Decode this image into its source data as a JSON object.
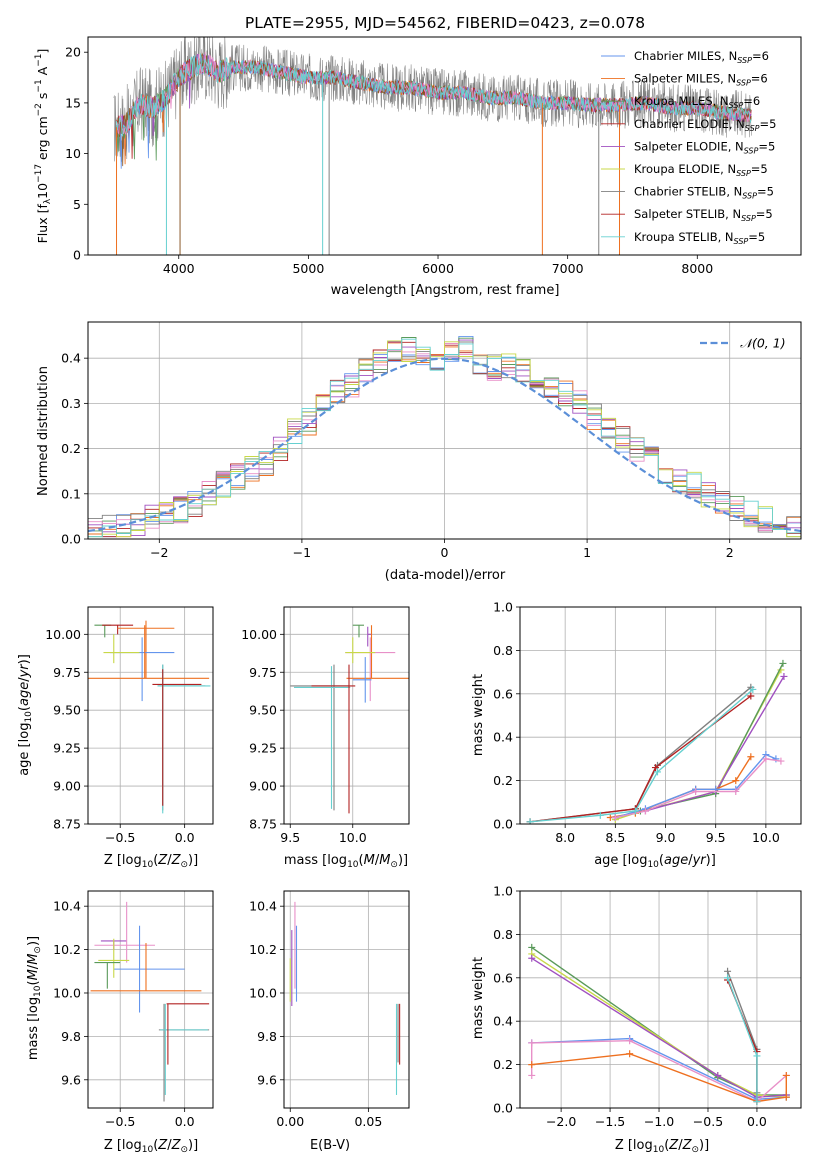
{
  "colors": [
    "#6495ed",
    "#ee7020",
    "#5a9a5a",
    "#b22222",
    "#a050c0",
    "#8b5a2b",
    "#e890c8",
    "#808080",
    "#c8d848",
    "#66d0d0"
  ],
  "chart_data": [
    {
      "id": "spectrum",
      "type": "line",
      "title": "PLATE=2955, MJD=54562, FIBERID=0423, z=0.078",
      "xlabel": "wavelength [Angstrom, rest frame]",
      "ylabel": "Flux [f$_\\lambda$10$^{-17}$ erg cm$^{-2}$ s$^{-1}$ A$^{-1}$]",
      "ylabel_parts": [
        "Flux [f",
        "λ",
        "10",
        "−17",
        " erg cm",
        "−2",
        " s",
        "−1",
        " A",
        "−1",
        "]"
      ],
      "xlim": [
        3300,
        8800
      ],
      "ylim": [
        0,
        21.5
      ],
      "xticks": [
        "4000",
        "5000",
        "6000",
        "7000",
        "8000"
      ],
      "xtick_values": [
        4000,
        5000,
        6000,
        7000,
        8000
      ],
      "yticks": [
        "0",
        "5",
        "10",
        "15",
        "20"
      ],
      "ytick_values": [
        0,
        5,
        10,
        15,
        20
      ],
      "legend": {
        "placement": "upper-right",
        "entries": [
          {
            "name": "Chabrier MILES, N",
            "sub": "SSP",
            "val": "=6"
          },
          {
            "name": "Salpeter MILES, N",
            "sub": "SSP",
            "val": "=6"
          },
          {
            "name": "Kroupa MILES, N",
            "sub": "SSP",
            "val": "=6"
          },
          {
            "name": "Chabrier ELODIE, N",
            "sub": "SSP",
            "val": "=5"
          },
          {
            "name": "Salpeter ELODIE, N",
            "sub": "SSP",
            "val": "=5"
          },
          {
            "name": "Kroupa ELODIE, N",
            "sub": "SSP",
            "val": "=5"
          },
          {
            "name": "Chabrier STELIB, N",
            "sub": "SSP",
            "val": "=5"
          },
          {
            "name": "Salpeter STELIB, N",
            "sub": "SSP",
            "val": "=5"
          },
          {
            "name": "Kroupa STELIB, N",
            "sub": "SSP",
            "val": "=5"
          }
        ]
      },
      "data_points": {
        "wavelength": [
          3500,
          3600,
          3700,
          3800,
          3900,
          4000,
          4100,
          4200,
          4300,
          4400,
          4600,
          4800,
          5000,
          5200,
          5400,
          5600,
          5800,
          6000,
          6200,
          6400,
          6600,
          6800,
          7000,
          7200,
          7400,
          7600,
          7800,
          8000,
          8200,
          8400
        ],
        "flux": [
          12.5,
          13.0,
          15.0,
          14.5,
          15.5,
          17.5,
          18.5,
          19.0,
          18.0,
          18.5,
          18.5,
          18.0,
          17.5,
          17.5,
          17.0,
          16.5,
          16.5,
          16.0,
          16.0,
          15.5,
          15.5,
          15.0,
          15.0,
          14.8,
          14.8,
          15.0,
          14.5,
          14.5,
          14.0,
          13.8
        ]
      }
    },
    {
      "id": "residuals",
      "type": "histogram",
      "xlabel": "(data-model)/error",
      "ylabel": "Normed distribution",
      "xlim": [
        -2.5,
        2.5
      ],
      "ylim": [
        0,
        0.48
      ],
      "xticks": [
        "−2",
        "−1",
        "0",
        "1",
        "2"
      ],
      "xtick_values": [
        -2,
        -1,
        0,
        1,
        2
      ],
      "yticks": [
        "0.0",
        "0.1",
        "0.2",
        "0.3",
        "0.4"
      ],
      "ytick_values": [
        0,
        0.1,
        0.2,
        0.3,
        0.4
      ],
      "grid": true,
      "legend": {
        "placement": "upper-right",
        "entries": [
          {
            "name": "N(0,1)"
          }
        ]
      },
      "bin_edges": [
        -2.5,
        -2.4,
        -2.3,
        -2.2,
        -2.1,
        -2.0,
        -1.9,
        -1.8,
        -1.7,
        -1.6,
        -1.5,
        -1.4,
        -1.3,
        -1.2,
        -1.1,
        -1.0,
        -0.9,
        -0.8,
        -0.7,
        -0.6,
        -0.5,
        -0.4,
        -0.3,
        -0.2,
        -0.1,
        0.0,
        0.1,
        0.2,
        0.3,
        0.4,
        0.5,
        0.6,
        0.7,
        0.8,
        0.9,
        1.0,
        1.1,
        1.2,
        1.3,
        1.4,
        1.5,
        1.6,
        1.7,
        1.8,
        1.9,
        2.0,
        2.1,
        2.2,
        2.3,
        2.4,
        2.5
      ],
      "hist_values": [
        0.02,
        0.025,
        0.03,
        0.035,
        0.045,
        0.055,
        0.065,
        0.08,
        0.1,
        0.12,
        0.14,
        0.155,
        0.17,
        0.2,
        0.24,
        0.26,
        0.3,
        0.33,
        0.34,
        0.37,
        0.39,
        0.41,
        0.42,
        0.41,
        0.4,
        0.41,
        0.42,
        0.39,
        0.38,
        0.38,
        0.37,
        0.36,
        0.34,
        0.32,
        0.3,
        0.27,
        0.24,
        0.22,
        0.2,
        0.18,
        0.15,
        0.13,
        0.12,
        0.1,
        0.08,
        0.065,
        0.055,
        0.045,
        0.035,
        0.03
      ]
    },
    {
      "id": "age-vs-Z",
      "type": "scatter",
      "xlabel": "Z [log10(Z/Z⊙)]",
      "ylabel": "age [log10(age/yr)]",
      "xlim": [
        -0.75,
        0.22
      ],
      "ylim": [
        8.75,
        10.18
      ],
      "xticks": [
        "−0.5",
        "0.0"
      ],
      "xtick_values": [
        -0.5,
        0.0
      ],
      "yticks": [
        "8.75",
        "9.00",
        "9.25",
        "9.50",
        "9.75",
        "10.00"
      ],
      "ytick_values": [
        8.75,
        9.0,
        9.25,
        9.5,
        9.75,
        10.0
      ]
    },
    {
      "id": "age-vs-mass",
      "type": "scatter",
      "xlabel": "mass [log10(M/M⊙)]",
      "xlim": [
        9.45,
        10.45
      ],
      "ylim": [
        8.75,
        10.18
      ],
      "xticks": [
        "9.5",
        "10.0"
      ],
      "xtick_values": [
        9.5,
        10.0
      ],
      "yticks": [
        "8.75",
        "9.00",
        "9.25",
        "9.50",
        "9.75",
        "10.00"
      ],
      "ytick_values": [
        8.75,
        9.0,
        9.25,
        9.5,
        9.75,
        10.0
      ]
    },
    {
      "id": "weight-vs-age",
      "type": "line",
      "xlabel": "age [log10(age/yr)]",
      "ylabel": "mass weight",
      "xlim": [
        7.55,
        10.35
      ],
      "ylim": [
        0,
        1.0
      ],
      "xticks": [
        "8.0",
        "8.5",
        "9.0",
        "9.5",
        "10.0"
      ],
      "xtick_values": [
        8.0,
        8.5,
        9.0,
        9.5,
        10.0
      ],
      "yticks": [
        "0.0",
        "0.2",
        "0.4",
        "0.6",
        "0.8",
        "1.0"
      ],
      "ytick_values": [
        0,
        0.2,
        0.4,
        0.6,
        0.8,
        1.0
      ],
      "grid": true
    },
    {
      "id": "mass-vs-Z",
      "type": "scatter",
      "xlabel": "Z [log10(Z/Z⊙)]",
      "ylabel": "mass [log10(M/M⊙)]",
      "xlim": [
        -0.75,
        0.22
      ],
      "ylim": [
        9.47,
        10.47
      ],
      "xticks": [
        "−0.5",
        "0.0"
      ],
      "xtick_values": [
        -0.5,
        0.0
      ],
      "yticks": [
        "9.6",
        "9.8",
        "10.0",
        "10.2",
        "10.4"
      ],
      "ytick_values": [
        9.6,
        9.8,
        10.0,
        10.2,
        10.4
      ]
    },
    {
      "id": "mass-vs-EBV",
      "type": "scatter",
      "xlabel": "E(B-V)",
      "xlim": [
        -0.004,
        0.076
      ],
      "ylim": [
        9.47,
        10.47
      ],
      "xticks": [
        "0.00",
        "0.05"
      ],
      "xtick_values": [
        0.0,
        0.05
      ],
      "yticks": [
        "9.6",
        "9.8",
        "10.0",
        "10.2",
        "10.4"
      ],
      "ytick_values": [
        9.6,
        9.8,
        10.0,
        10.2,
        10.4
      ]
    },
    {
      "id": "weight-vs-Z",
      "type": "line",
      "xlabel": "Z [log10(Z/Z⊙)]",
      "ylabel": "mass weight",
      "xlim": [
        -2.42,
        0.45
      ],
      "ylim": [
        0,
        1.0
      ],
      "xticks": [
        "−2.0",
        "−1.5",
        "−1.0",
        "−0.5",
        "0.0"
      ],
      "xtick_values": [
        -2.0,
        -1.5,
        -1.0,
        -0.5,
        0.0
      ],
      "yticks": [
        "0.0",
        "0.2",
        "0.4",
        "0.6",
        "0.8",
        "1.0"
      ],
      "ytick_values": [
        0,
        0.2,
        0.4,
        0.6,
        0.8,
        1.0
      ],
      "grid": true
    }
  ]
}
